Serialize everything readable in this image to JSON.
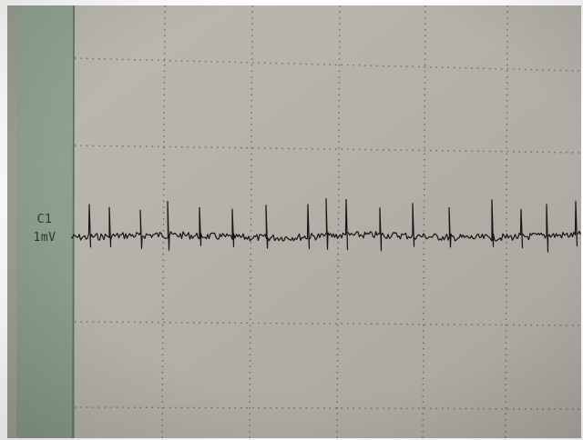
{
  "channel": {
    "lead": "C1",
    "gain": "1mV"
  },
  "colors": {
    "paper": "#b4b1aa",
    "margin_strip": "#8ea18e",
    "grid": "#555049",
    "trace": "#151512"
  },
  "trace": {
    "beat_count": 18
  }
}
